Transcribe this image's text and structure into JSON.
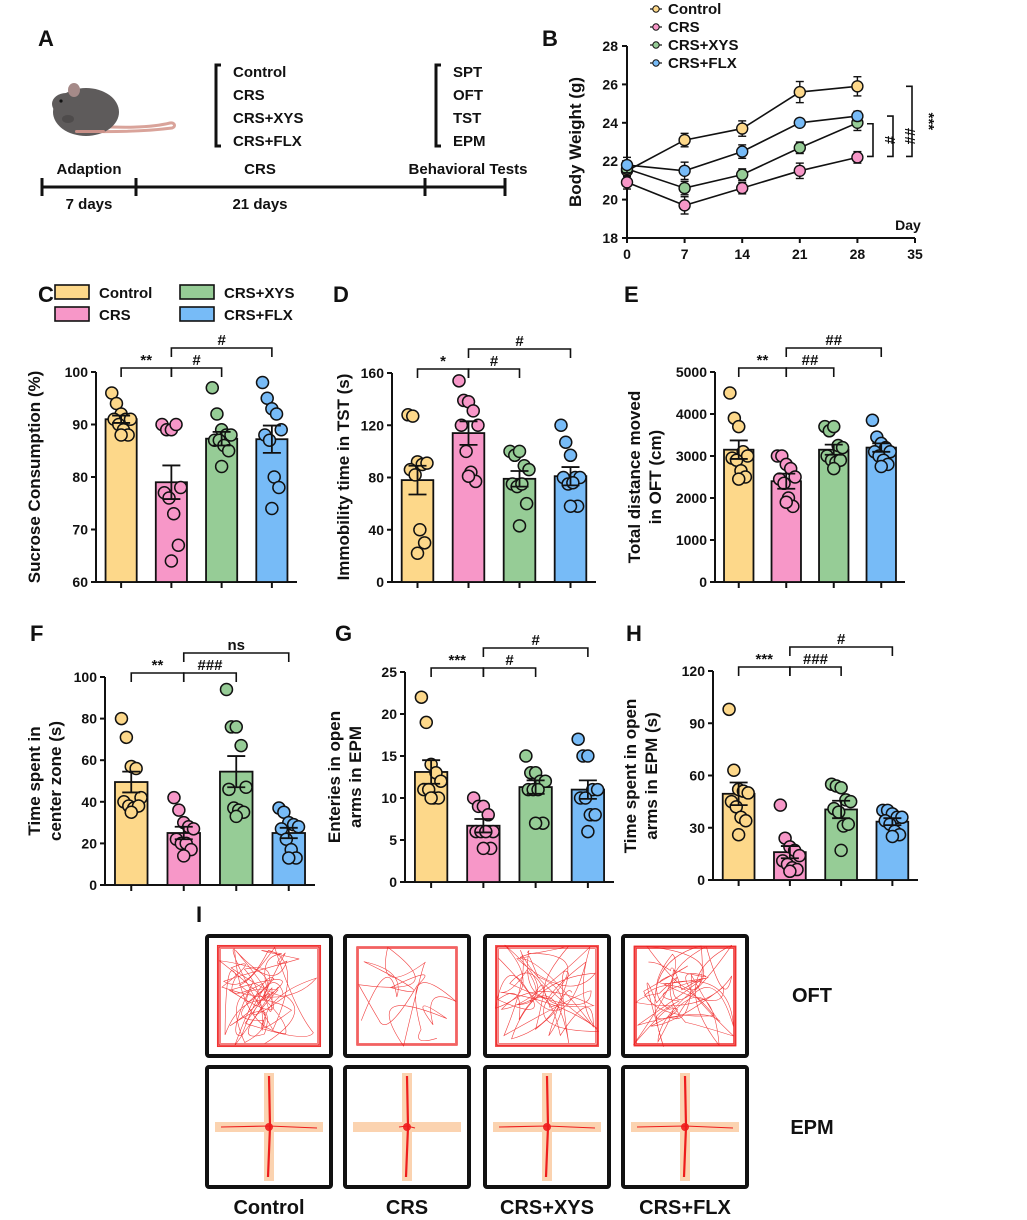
{
  "colors": {
    "Control": "#fdd88a",
    "CRS": "#f797c8",
    "CRS+XYS": "#96cc96",
    "CRS+FLX": "#77bbf7",
    "axis": "#111111",
    "track_red": "#ee1c1c",
    "epm_arm": "#fbd3b0",
    "mouse_body": "#5e5b5b",
    "mouse_tail": "#d9a39a"
  },
  "groups": [
    "Control",
    "CRS",
    "CRS+XYS",
    "CRS+FLX"
  ],
  "panel_a": {
    "letter": "A",
    "groups_list": [
      "Control",
      "CRS",
      "CRS+XYS",
      "CRS+FLX"
    ],
    "tests_list": [
      "SPT",
      "OFT",
      "TST",
      "EPM"
    ],
    "phases": [
      {
        "label": "Adaption",
        "duration": "7 days"
      },
      {
        "label": "CRS",
        "duration": "21 days"
      },
      {
        "label": "Behavioral Tests",
        "duration": ""
      }
    ],
    "icon": "mouse-icon"
  },
  "chart_data": [
    {
      "id": "B",
      "type": "line",
      "title": "",
      "xlabel": "Day",
      "ylabel": "Body Weight (g)",
      "x": [
        0,
        7,
        14,
        21,
        28
      ],
      "xticks": [
        0,
        7,
        14,
        21,
        28,
        35
      ],
      "yticks": [
        18,
        20,
        22,
        24,
        26,
        28
      ],
      "xlim": [
        0,
        35
      ],
      "ylim": [
        18,
        28
      ],
      "legend": [
        "Control",
        "CRS",
        "CRS+XYS",
        "CRS+FLX"
      ],
      "legend_position": "top-left",
      "series": [
        {
          "name": "Control",
          "values": [
            21.5,
            23.1,
            23.7,
            25.6,
            25.9
          ],
          "err": [
            0.4,
            0.35,
            0.4,
            0.55,
            0.5
          ]
        },
        {
          "name": "CRS",
          "values": [
            20.9,
            19.7,
            20.6,
            21.5,
            22.2
          ],
          "err": [
            0.35,
            0.45,
            0.3,
            0.4,
            0.3
          ]
        },
        {
          "name": "CRS+XYS",
          "values": [
            21.6,
            20.6,
            21.3,
            22.7,
            24.0
          ],
          "err": [
            0.4,
            0.35,
            0.3,
            0.3,
            0.4
          ]
        },
        {
          "name": "CRS+FLX",
          "values": [
            21.8,
            21.5,
            22.5,
            24.0,
            24.35
          ],
          "err": [
            0.4,
            0.45,
            0.35,
            0.2,
            0.25
          ]
        }
      ],
      "significance": [
        {
          "label": "#",
          "from": "CRS",
          "to": "CRS+XYS"
        },
        {
          "label": "##",
          "from": "CRS",
          "to": "CRS+FLX"
        },
        {
          "label": "***",
          "from": "CRS",
          "to": "Control"
        }
      ]
    },
    {
      "id": "C",
      "type": "bar",
      "ylabel": "Sucrose Consumption (%)",
      "categories": [
        "Control",
        "CRS",
        "CRS+XYS",
        "CRS+FLX"
      ],
      "values": [
        91.0,
        79.0,
        87.3,
        87.2
      ],
      "sem": [
        0.7,
        3.2,
        1.3,
        2.6
      ],
      "points": [
        [
          96,
          94,
          92,
          91,
          91,
          91,
          90,
          89,
          88,
          88
        ],
        [
          90,
          89,
          89,
          90,
          78,
          77,
          76,
          73,
          67,
          64
        ],
        [
          97,
          92,
          89,
          88,
          88,
          87,
          87,
          86,
          85,
          82
        ],
        [
          98,
          95,
          93,
          92,
          89,
          88,
          87,
          80,
          78,
          74
        ]
      ],
      "ylim": [
        60,
        100
      ],
      "yticks": [
        60,
        70,
        80,
        90,
        100
      ],
      "legend": [
        "Control",
        "CRS",
        "CRS+XYS",
        "CRS+FLX"
      ],
      "significance": [
        {
          "label": "**",
          "from": 0,
          "to": 1,
          "level": 1
        },
        {
          "label": "#",
          "from": 1,
          "to": 2,
          "level": 1
        },
        {
          "label": "#",
          "from": 1,
          "to": 3,
          "level": 2
        }
      ]
    },
    {
      "id": "D",
      "type": "bar",
      "ylabel": "Immobility time in TST (s)",
      "categories": [
        "Control",
        "CRS",
        "CRS+XYS",
        "CRS+FLX"
      ],
      "values": [
        78,
        114,
        79,
        81
      ],
      "sem": [
        11,
        9,
        6,
        7
      ],
      "points": [
        [
          128,
          127,
          92,
          90,
          91,
          86,
          82,
          40,
          30,
          22
        ],
        [
          154,
          139,
          138,
          131,
          120,
          120,
          100,
          84,
          77,
          81
        ],
        [
          100,
          97,
          100,
          89,
          86,
          75,
          73,
          75,
          60,
          43
        ],
        [
          120,
          107,
          97,
          80,
          80,
          80,
          75,
          76,
          58,
          58
        ]
      ],
      "ylim": [
        0,
        160
      ],
      "yticks": [
        0,
        40,
        80,
        120,
        160
      ],
      "significance": [
        {
          "label": "*",
          "from": 0,
          "to": 1,
          "level": 1
        },
        {
          "label": "#",
          "from": 1,
          "to": 2,
          "level": 1
        },
        {
          "label": "#",
          "from": 1,
          "to": 3,
          "level": 2
        }
      ]
    },
    {
      "id": "E",
      "type": "bar",
      "ylabel": "Total distance moved in OFT (cm)",
      "ylabel_lines": [
        "Total distance moved",
        "in OFT (cm)"
      ],
      "categories": [
        "Control",
        "CRS",
        "CRS+XYS",
        "CRS+FLX"
      ],
      "values": [
        3150,
        2400,
        3150,
        3200
      ],
      "sem": [
        220,
        180,
        120,
        100
      ],
      "points": [
        [
          4500,
          3900,
          3700,
          3100,
          3000,
          2950,
          2900,
          2650,
          2500,
          2450
        ],
        [
          3000,
          3000,
          2800,
          2700,
          2500,
          2450,
          2350,
          2000,
          1800,
          1900
        ],
        [
          3700,
          3600,
          3700,
          3250,
          3200,
          3000,
          2900,
          2850,
          2900,
          2700
        ],
        [
          3850,
          3450,
          3300,
          3200,
          3100,
          3100,
          3000,
          2900,
          2800,
          2750
        ]
      ],
      "ylim": [
        0,
        5000
      ],
      "yticks": [
        0,
        1000,
        2000,
        3000,
        4000,
        5000
      ],
      "significance": [
        {
          "label": "**",
          "from": 0,
          "to": 1,
          "level": 1
        },
        {
          "label": "##",
          "from": 1,
          "to": 2,
          "level": 1
        },
        {
          "label": "##",
          "from": 1,
          "to": 3,
          "level": 2
        }
      ]
    },
    {
      "id": "F",
      "type": "bar",
      "ylabel": "Time spent in center zone (s)",
      "ylabel_lines": [
        "Time spent in",
        "center zone (s)"
      ],
      "categories": [
        "Control",
        "CRS",
        "CRS+XYS",
        "CRS+FLX"
      ],
      "values": [
        49.5,
        25.0,
        54.5,
        25.0
      ],
      "sem": [
        5.0,
        3.0,
        7.5,
        2.5
      ],
      "points": [
        [
          80,
          71,
          57,
          56,
          42,
          40,
          38,
          37,
          38,
          35
        ],
        [
          42,
          36,
          30,
          28,
          27,
          22,
          20,
          20,
          17,
          14
        ],
        [
          94,
          76,
          76,
          67,
          47,
          46,
          37,
          36,
          35,
          33
        ],
        [
          37,
          35,
          30,
          29,
          28,
          27,
          22,
          17,
          13,
          13
        ]
      ],
      "ylim": [
        0,
        100
      ],
      "yticks": [
        0,
        20,
        40,
        60,
        80,
        100
      ],
      "significance": [
        {
          "label": "**",
          "from": 0,
          "to": 1,
          "level": 1
        },
        {
          "label": "###",
          "from": 1,
          "to": 2,
          "level": 1
        },
        {
          "label": "ns",
          "from": 1,
          "to": 3,
          "level": 2
        }
      ]
    },
    {
      "id": "G",
      "type": "bar",
      "ylabel": "Enteries in open arms in EPM",
      "ylabel_lines": [
        "Enteries in open",
        "arms in EPM"
      ],
      "categories": [
        "Control",
        "CRS",
        "CRS+XYS",
        "CRS+FLX"
      ],
      "values": [
        13.1,
        6.7,
        11.3,
        11.0
      ],
      "sem": [
        1.4,
        0.8,
        0.8,
        1.1
      ],
      "points": [
        [
          22,
          19,
          14,
          13,
          12,
          11,
          11,
          10,
          10,
          10
        ],
        [
          10,
          9,
          9,
          8,
          6,
          6,
          6,
          6,
          4,
          4
        ],
        [
          15,
          13,
          13,
          12,
          12,
          11,
          11,
          11,
          7,
          7
        ],
        [
          17,
          15,
          15,
          11,
          11,
          10,
          10,
          8,
          8,
          6
        ]
      ],
      "ylim": [
        0,
        25
      ],
      "yticks": [
        0,
        5,
        10,
        15,
        20,
        25
      ],
      "significance": [
        {
          "label": "***",
          "from": 0,
          "to": 1,
          "level": 1
        },
        {
          "label": "#",
          "from": 1,
          "to": 2,
          "level": 1
        },
        {
          "label": "#",
          "from": 1,
          "to": 3,
          "level": 2
        }
      ]
    },
    {
      "id": "H",
      "type": "bar",
      "ylabel": "Time spent in open arms in EPM (s)",
      "ylabel_lines": [
        "Time spent in open",
        "arms in EPM (s)"
      ],
      "categories": [
        "Control",
        "CRS",
        "CRS+XYS",
        "CRS+FLX"
      ],
      "values": [
        49.5,
        16.0,
        40.5,
        33.5
      ],
      "sem": [
        6.5,
        3.5,
        5.0,
        2.0
      ],
      "points": [
        [
          98,
          63,
          52,
          51,
          50,
          45,
          42,
          36,
          34,
          26
        ],
        [
          43,
          24,
          19,
          17,
          14,
          11,
          9,
          7,
          6,
          5
        ],
        [
          55,
          54,
          53,
          46,
          45,
          41,
          39,
          31,
          32,
          17
        ],
        [
          40,
          40,
          38,
          36,
          36,
          34,
          32,
          28,
          26,
          25
        ]
      ],
      "ylim": [
        0,
        120
      ],
      "yticks": [
        0,
        30,
        60,
        90,
        120
      ],
      "significance": [
        {
          "label": "***",
          "from": 0,
          "to": 1,
          "level": 1
        },
        {
          "label": "###",
          "from": 1,
          "to": 2,
          "level": 1
        },
        {
          "label": "#",
          "from": 1,
          "to": 3,
          "level": 2
        }
      ]
    }
  ],
  "panel_i": {
    "letter": "I",
    "row_labels": [
      "OFT",
      "EPM"
    ],
    "column_labels": [
      "Control",
      "CRS",
      "CRS+XYS",
      "CRS+FLX"
    ],
    "track_density": [
      1.0,
      0.35,
      0.9,
      0.9
    ]
  }
}
